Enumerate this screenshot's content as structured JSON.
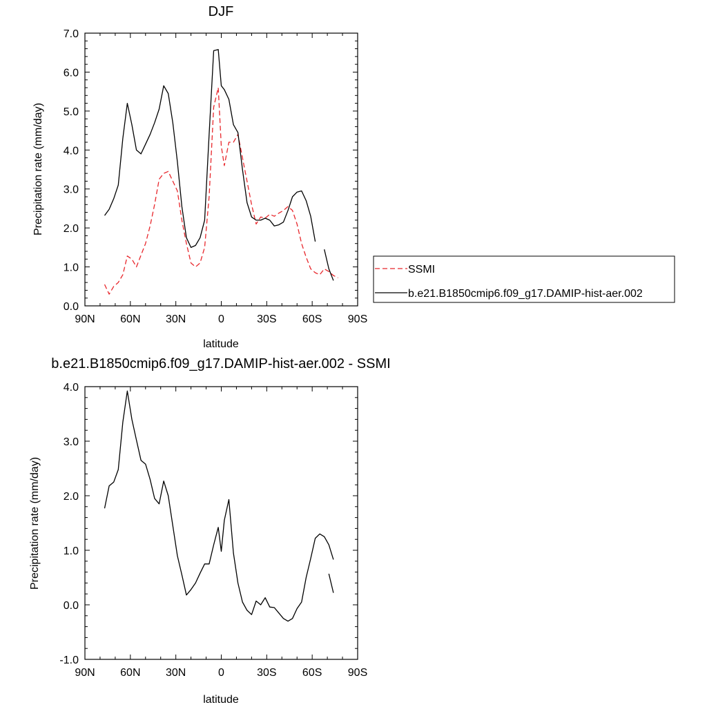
{
  "chart_data": [
    {
      "type": "line",
      "title": "DJF",
      "xlabel": "latitude",
      "ylabel": "Precipitation rate (mm/day)",
      "xlim": [
        90,
        -90
      ],
      "ylim": [
        0.0,
        7.0
      ],
      "xticks": [
        90,
        60,
        30,
        0,
        -30,
        -60,
        -90
      ],
      "xtick_labels": [
        "90N",
        "60N",
        "30N",
        "0",
        "30S",
        "60S",
        "90S"
      ],
      "yticks": [
        0,
        1,
        2,
        3,
        4,
        5,
        6,
        7
      ],
      "ytick_labels": [
        "0.0",
        "1.0",
        "2.0",
        "3.0",
        "4.0",
        "5.0",
        "6.0",
        "7.0"
      ],
      "grid": false,
      "legend": {
        "position": "right",
        "entries": [
          "SSMI",
          "b.e21.B1850cmip6.f09_g17.DAMIP-hist-aer.002"
        ]
      },
      "series": [
        {
          "name": "SSMI",
          "color": "#e8262b",
          "dash": "dashed",
          "x": [
            77,
            74,
            71,
            68,
            65,
            62,
            59,
            56,
            53,
            50,
            47,
            44,
            41,
            38,
            35,
            32,
            29,
            26,
            23,
            20,
            17,
            14,
            11,
            8,
            5,
            2,
            0,
            -2,
            -5,
            -8,
            -11,
            -14,
            -17,
            -20,
            -23,
            -26,
            -29,
            -32,
            -35,
            -38,
            -41,
            -44,
            -47,
            -50,
            -53,
            -56,
            -59,
            -62,
            -65,
            -68,
            -71,
            -74,
            -77
          ],
          "y": [
            0.55,
            0.3,
            0.5,
            0.6,
            0.8,
            1.28,
            1.2,
            1.0,
            1.3,
            1.6,
            2.05,
            2.6,
            3.25,
            3.4,
            3.45,
            3.2,
            2.95,
            2.2,
            1.6,
            1.1,
            1.0,
            1.1,
            1.5,
            2.8,
            5.1,
            5.6,
            4.1,
            3.6,
            4.2,
            4.2,
            4.4,
            3.8,
            3.2,
            2.6,
            2.1,
            2.28,
            2.25,
            2.35,
            2.3,
            2.38,
            2.45,
            2.55,
            2.45,
            2.1,
            1.6,
            1.25,
            0.95,
            0.85,
            0.8,
            0.95,
            0.88,
            0.78,
            0.72
          ]
        },
        {
          "name": "b.e21.B1850cmip6.f09_g17.DAMIP-hist-aer.002",
          "color": "#000000",
          "dash": "solid",
          "x": [
            77,
            74,
            71,
            68,
            65,
            62,
            59,
            56,
            53,
            50,
            47,
            44,
            41,
            38,
            35,
            32,
            29,
            26,
            23,
            20,
            17,
            14,
            11,
            8,
            5,
            2,
            0,
            -2,
            -5,
            -8,
            -11,
            -14,
            -17,
            -20,
            -23,
            -26,
            -29,
            -32,
            -35,
            -38,
            -41,
            -44,
            -47,
            -50,
            -53,
            -56,
            -59,
            -62,
            -65,
            -68,
            -71,
            -74,
            -77
          ],
          "y": [
            2.32,
            2.48,
            2.75,
            3.1,
            4.3,
            5.2,
            4.65,
            4.0,
            3.9,
            4.15,
            4.4,
            4.7,
            5.05,
            5.65,
            5.45,
            4.7,
            3.7,
            2.55,
            1.75,
            1.5,
            1.55,
            1.75,
            2.2,
            4.4,
            6.55,
            6.58,
            5.65,
            5.55,
            5.3,
            4.65,
            4.45,
            3.5,
            2.65,
            2.28,
            2.2,
            2.2,
            2.25,
            2.2,
            2.05,
            2.08,
            2.15,
            2.45,
            2.8,
            2.92,
            2.95,
            2.7,
            2.3,
            1.65,
            null,
            1.45,
            0.95,
            0.65,
            null
          ]
        }
      ]
    },
    {
      "type": "line",
      "title": "b.e21.B1850cmip6.f09_g17.DAMIP-hist-aer.002 - SSMI",
      "xlabel": "latitude",
      "ylabel": "Precipitation rate (mm/day)",
      "xlim": [
        90,
        -90
      ],
      "ylim": [
        -1.0,
        4.0
      ],
      "xticks": [
        90,
        60,
        30,
        0,
        -30,
        -60,
        -90
      ],
      "xtick_labels": [
        "90N",
        "60N",
        "30N",
        "0",
        "30S",
        "60S",
        "90S"
      ],
      "yticks": [
        -1,
        0,
        1,
        2,
        3,
        4
      ],
      "ytick_labels": [
        "-1.0",
        "0.0",
        "1.0",
        "2.0",
        "3.0",
        "4.0"
      ],
      "grid": false,
      "series": [
        {
          "color": "#000000",
          "dash": "solid",
          "x": [
            77,
            74,
            71,
            68,
            65,
            62,
            59,
            56,
            53,
            50,
            47,
            44,
            41,
            38,
            35,
            32,
            29,
            26,
            23,
            20,
            17,
            14,
            11,
            8,
            5,
            2,
            0,
            -2,
            -5,
            -8,
            -11,
            -14,
            -17,
            -20,
            -23,
            -26,
            -29,
            -32,
            -35,
            -38,
            -41,
            -44,
            -47,
            -50,
            -53,
            -56,
            -59,
            -62,
            -65,
            -68,
            -71,
            -74
          ],
          "y": [
            1.77,
            2.18,
            2.25,
            2.48,
            3.35,
            3.92,
            3.4,
            3.02,
            2.65,
            2.58,
            2.3,
            1.95,
            1.85,
            2.27,
            2.0,
            1.45,
            0.9,
            0.55,
            0.18,
            0.28,
            0.4,
            0.58,
            0.75,
            0.75,
            1.1,
            1.42,
            0.98,
            1.55,
            1.93,
            0.95,
            0.4,
            0.05,
            -0.1,
            -0.18,
            0.07,
            0.0,
            0.13,
            -0.04,
            -0.05,
            -0.15,
            -0.25,
            -0.3,
            -0.25,
            -0.07,
            0.05,
            0.5,
            0.85,
            1.22,
            1.3,
            1.25,
            1.1,
            0.83
          ]
        },
        {
          "color": "#000000",
          "dash": "solid",
          "x": [
            -71,
            -74
          ],
          "y": [
            0.57,
            0.22
          ]
        }
      ]
    }
  ]
}
